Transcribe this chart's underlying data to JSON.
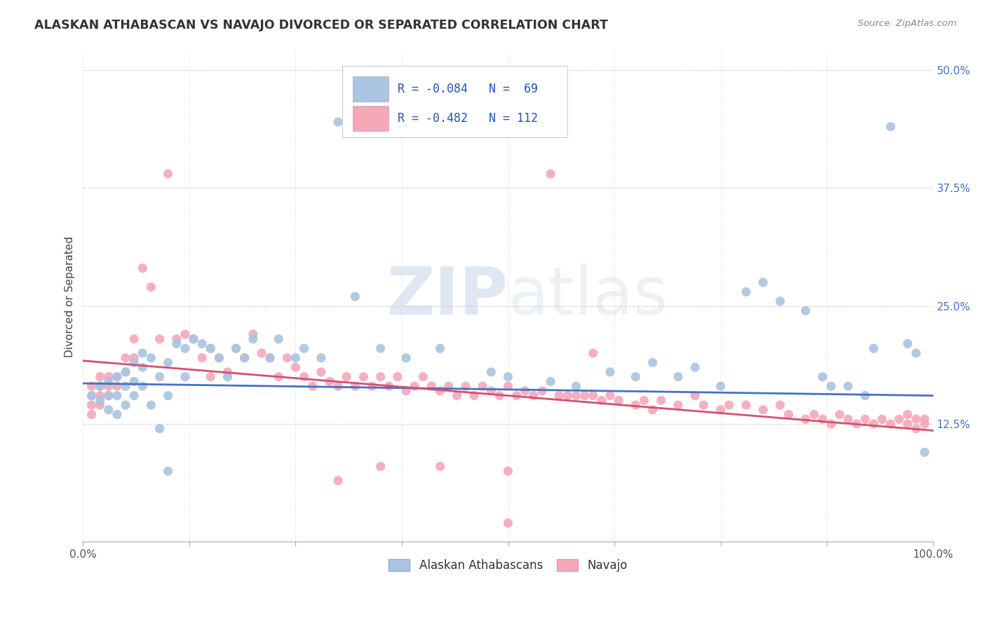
{
  "title": "ALASKAN ATHABASCAN VS NAVAJO DIVORCED OR SEPARATED CORRELATION CHART",
  "source": "Source: ZipAtlas.com",
  "ylabel": "Divorced or Separated",
  "xlim": [
    0,
    1.0
  ],
  "ylim": [
    0,
    0.52
  ],
  "ytick_positions": [
    0.125,
    0.25,
    0.375,
    0.5
  ],
  "ytick_labels": [
    "12.5%",
    "25.0%",
    "37.5%",
    "50.0%"
  ],
  "legend_text1": "R = -0.084   N =  69",
  "legend_text2": "R = -0.482   N = 112",
  "blue_color": "#aac4e2",
  "pink_color": "#f4a8b8",
  "blue_line_color": "#4472c4",
  "pink_line_color": "#d45070",
  "watermark": "ZIPatlas",
  "blue_line_x0": 0.0,
  "blue_line_y0": 0.168,
  "blue_line_x1": 1.0,
  "blue_line_y1": 0.155,
  "pink_line_x0": 0.0,
  "pink_line_y0": 0.192,
  "pink_line_x1": 1.0,
  "pink_line_y1": 0.118,
  "blue_scatter": [
    [
      0.01,
      0.155
    ],
    [
      0.02,
      0.165
    ],
    [
      0.02,
      0.15
    ],
    [
      0.03,
      0.17
    ],
    [
      0.03,
      0.155
    ],
    [
      0.03,
      0.14
    ],
    [
      0.04,
      0.175
    ],
    [
      0.04,
      0.155
    ],
    [
      0.04,
      0.135
    ],
    [
      0.05,
      0.18
    ],
    [
      0.05,
      0.165
    ],
    [
      0.05,
      0.145
    ],
    [
      0.06,
      0.19
    ],
    [
      0.06,
      0.17
    ],
    [
      0.06,
      0.155
    ],
    [
      0.07,
      0.2
    ],
    [
      0.07,
      0.185
    ],
    [
      0.07,
      0.165
    ],
    [
      0.08,
      0.195
    ],
    [
      0.08,
      0.145
    ],
    [
      0.09,
      0.175
    ],
    [
      0.09,
      0.12
    ],
    [
      0.1,
      0.19
    ],
    [
      0.1,
      0.155
    ],
    [
      0.11,
      0.21
    ],
    [
      0.12,
      0.205
    ],
    [
      0.12,
      0.175
    ],
    [
      0.13,
      0.215
    ],
    [
      0.14,
      0.21
    ],
    [
      0.15,
      0.205
    ],
    [
      0.16,
      0.195
    ],
    [
      0.17,
      0.175
    ],
    [
      0.18,
      0.205
    ],
    [
      0.19,
      0.195
    ],
    [
      0.2,
      0.215
    ],
    [
      0.22,
      0.195
    ],
    [
      0.23,
      0.215
    ],
    [
      0.25,
      0.195
    ],
    [
      0.26,
      0.205
    ],
    [
      0.28,
      0.195
    ],
    [
      0.3,
      0.445
    ],
    [
      0.32,
      0.26
    ],
    [
      0.35,
      0.205
    ],
    [
      0.38,
      0.195
    ],
    [
      0.42,
      0.205
    ],
    [
      0.48,
      0.18
    ],
    [
      0.5,
      0.175
    ],
    [
      0.55,
      0.17
    ],
    [
      0.58,
      0.165
    ],
    [
      0.62,
      0.18
    ],
    [
      0.65,
      0.175
    ],
    [
      0.67,
      0.19
    ],
    [
      0.7,
      0.175
    ],
    [
      0.72,
      0.185
    ],
    [
      0.75,
      0.165
    ],
    [
      0.78,
      0.265
    ],
    [
      0.8,
      0.275
    ],
    [
      0.82,
      0.255
    ],
    [
      0.85,
      0.245
    ],
    [
      0.87,
      0.175
    ],
    [
      0.88,
      0.165
    ],
    [
      0.9,
      0.165
    ],
    [
      0.92,
      0.155
    ],
    [
      0.93,
      0.205
    ],
    [
      0.95,
      0.44
    ],
    [
      0.97,
      0.21
    ],
    [
      0.98,
      0.2
    ],
    [
      0.99,
      0.095
    ],
    [
      0.1,
      0.075
    ]
  ],
  "pink_scatter": [
    [
      0.01,
      0.165
    ],
    [
      0.01,
      0.155
    ],
    [
      0.01,
      0.145
    ],
    [
      0.01,
      0.135
    ],
    [
      0.02,
      0.175
    ],
    [
      0.02,
      0.165
    ],
    [
      0.02,
      0.155
    ],
    [
      0.02,
      0.145
    ],
    [
      0.03,
      0.175
    ],
    [
      0.03,
      0.165
    ],
    [
      0.03,
      0.155
    ],
    [
      0.04,
      0.175
    ],
    [
      0.04,
      0.165
    ],
    [
      0.05,
      0.195
    ],
    [
      0.05,
      0.18
    ],
    [
      0.06,
      0.215
    ],
    [
      0.06,
      0.195
    ],
    [
      0.07,
      0.29
    ],
    [
      0.08,
      0.27
    ],
    [
      0.09,
      0.215
    ],
    [
      0.1,
      0.39
    ],
    [
      0.11,
      0.215
    ],
    [
      0.12,
      0.22
    ],
    [
      0.13,
      0.215
    ],
    [
      0.14,
      0.195
    ],
    [
      0.15,
      0.205
    ],
    [
      0.15,
      0.175
    ],
    [
      0.16,
      0.195
    ],
    [
      0.17,
      0.18
    ],
    [
      0.18,
      0.205
    ],
    [
      0.19,
      0.195
    ],
    [
      0.2,
      0.22
    ],
    [
      0.21,
      0.2
    ],
    [
      0.22,
      0.195
    ],
    [
      0.23,
      0.175
    ],
    [
      0.24,
      0.195
    ],
    [
      0.25,
      0.185
    ],
    [
      0.26,
      0.175
    ],
    [
      0.27,
      0.165
    ],
    [
      0.28,
      0.18
    ],
    [
      0.29,
      0.17
    ],
    [
      0.3,
      0.165
    ],
    [
      0.31,
      0.175
    ],
    [
      0.32,
      0.165
    ],
    [
      0.33,
      0.175
    ],
    [
      0.34,
      0.165
    ],
    [
      0.35,
      0.175
    ],
    [
      0.36,
      0.165
    ],
    [
      0.37,
      0.175
    ],
    [
      0.38,
      0.16
    ],
    [
      0.39,
      0.165
    ],
    [
      0.4,
      0.175
    ],
    [
      0.41,
      0.165
    ],
    [
      0.42,
      0.16
    ],
    [
      0.43,
      0.165
    ],
    [
      0.44,
      0.155
    ],
    [
      0.45,
      0.165
    ],
    [
      0.46,
      0.155
    ],
    [
      0.47,
      0.165
    ],
    [
      0.48,
      0.16
    ],
    [
      0.49,
      0.155
    ],
    [
      0.5,
      0.165
    ],
    [
      0.51,
      0.155
    ],
    [
      0.52,
      0.16
    ],
    [
      0.53,
      0.155
    ],
    [
      0.54,
      0.16
    ],
    [
      0.55,
      0.39
    ],
    [
      0.56,
      0.155
    ],
    [
      0.57,
      0.155
    ],
    [
      0.58,
      0.155
    ],
    [
      0.59,
      0.155
    ],
    [
      0.6,
      0.155
    ],
    [
      0.61,
      0.15
    ],
    [
      0.62,
      0.155
    ],
    [
      0.63,
      0.15
    ],
    [
      0.65,
      0.145
    ],
    [
      0.66,
      0.15
    ],
    [
      0.67,
      0.14
    ],
    [
      0.68,
      0.15
    ],
    [
      0.7,
      0.145
    ],
    [
      0.72,
      0.155
    ],
    [
      0.73,
      0.145
    ],
    [
      0.75,
      0.14
    ],
    [
      0.76,
      0.145
    ],
    [
      0.78,
      0.145
    ],
    [
      0.8,
      0.14
    ],
    [
      0.82,
      0.145
    ],
    [
      0.83,
      0.135
    ],
    [
      0.85,
      0.13
    ],
    [
      0.86,
      0.135
    ],
    [
      0.87,
      0.13
    ],
    [
      0.88,
      0.125
    ],
    [
      0.89,
      0.135
    ],
    [
      0.9,
      0.13
    ],
    [
      0.91,
      0.125
    ],
    [
      0.92,
      0.13
    ],
    [
      0.93,
      0.125
    ],
    [
      0.94,
      0.13
    ],
    [
      0.95,
      0.125
    ],
    [
      0.96,
      0.13
    ],
    [
      0.97,
      0.125
    ],
    [
      0.98,
      0.13
    ],
    [
      0.99,
      0.125
    ],
    [
      0.99,
      0.13
    ],
    [
      0.98,
      0.12
    ],
    [
      0.97,
      0.135
    ],
    [
      0.6,
      0.2
    ],
    [
      0.3,
      0.065
    ],
    [
      0.35,
      0.08
    ],
    [
      0.42,
      0.08
    ],
    [
      0.5,
      0.02
    ],
    [
      0.5,
      0.075
    ]
  ]
}
